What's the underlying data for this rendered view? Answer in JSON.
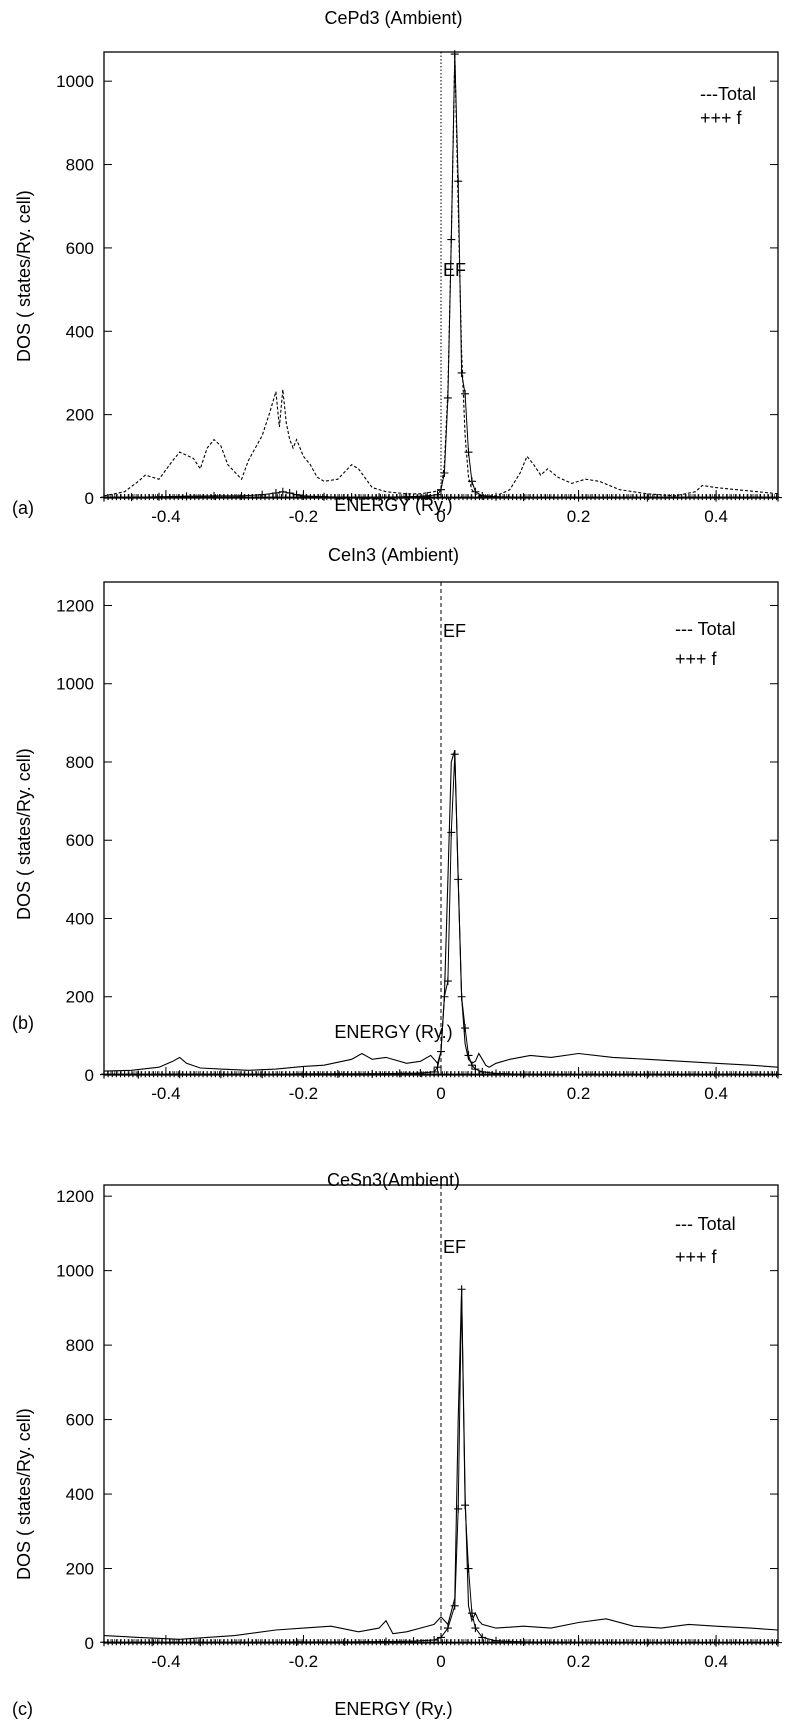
{
  "chart_data": [
    {
      "panel_label": "(a)",
      "type": "line",
      "title": "CePd3 (Ambient)",
      "xlabel": "ENERGY (Ry.)",
      "ylabel": "DOS ( states/Ry. cell)",
      "xlim": [
        -0.49,
        0.49
      ],
      "ylim": [
        0,
        1070
      ],
      "xticks": [
        -0.4,
        -0.2,
        0,
        0.2,
        0.4
      ],
      "xtick_labels": [
        "-0.4",
        "-0.2",
        "0",
        "0.2",
        "0.4"
      ],
      "yticks": [
        0,
        200,
        400,
        600,
        800,
        1000
      ],
      "ef_label": "EF",
      "ef_x": 0.0,
      "legend": [
        {
          "label": "---Total",
          "style": "dashed"
        },
        {
          "label": "+++ f",
          "style": "plus"
        }
      ],
      "series": [
        {
          "name": "Total",
          "style": "dashed",
          "x": [
            -0.49,
            -0.46,
            -0.44,
            -0.43,
            -0.41,
            -0.39,
            -0.38,
            -0.36,
            -0.35,
            -0.34,
            -0.33,
            -0.32,
            -0.31,
            -0.29,
            -0.28,
            -0.26,
            -0.25,
            -0.24,
            -0.235,
            -0.23,
            -0.225,
            -0.22,
            -0.215,
            -0.21,
            -0.2,
            -0.19,
            -0.18,
            -0.17,
            -0.15,
            -0.13,
            -0.12,
            -0.1,
            -0.08,
            -0.05,
            -0.03,
            -0.01,
            0.0,
            0.005,
            0.01,
            0.015,
            0.02,
            0.025,
            0.03,
            0.035,
            0.04,
            0.045,
            0.05,
            0.06,
            0.08,
            0.1,
            0.115,
            0.125,
            0.135,
            0.145,
            0.155,
            0.17,
            0.19,
            0.21,
            0.23,
            0.26,
            0.3,
            0.34,
            0.37,
            0.38,
            0.4,
            0.43,
            0.46,
            0.49
          ],
          "y": [
            5,
            15,
            40,
            55,
            45,
            90,
            110,
            95,
            70,
            120,
            140,
            125,
            80,
            45,
            90,
            150,
            200,
            255,
            170,
            260,
            180,
            140,
            120,
            140,
            100,
            80,
            50,
            40,
            45,
            80,
            70,
            25,
            15,
            10,
            10,
            15,
            20,
            80,
            260,
            620,
            1065,
            700,
            350,
            150,
            50,
            20,
            10,
            5,
            5,
            20,
            60,
            100,
            80,
            55,
            70,
            50,
            35,
            45,
            40,
            20,
            10,
            5,
            15,
            30,
            25,
            20,
            15,
            10
          ]
        },
        {
          "name": "f",
          "style": "plus",
          "x": [
            -0.49,
            -0.45,
            -0.41,
            -0.37,
            -0.33,
            -0.29,
            -0.26,
            -0.24,
            -0.23,
            -0.22,
            -0.21,
            -0.2,
            -0.17,
            -0.13,
            -0.09,
            -0.05,
            -0.02,
            -0.005,
            0.0,
            0.005,
            0.01,
            0.015,
            0.02,
            0.025,
            0.03,
            0.035,
            0.04,
            0.045,
            0.05,
            0.06,
            0.08,
            0.12,
            0.2,
            0.3,
            0.4,
            0.49
          ],
          "y": [
            1,
            2,
            3,
            4,
            5,
            5,
            8,
            12,
            15,
            12,
            8,
            5,
            3,
            2,
            2,
            3,
            5,
            8,
            20,
            60,
            240,
            620,
            1065,
            760,
            300,
            250,
            110,
            40,
            15,
            5,
            3,
            2,
            1,
            1,
            1,
            1
          ]
        }
      ]
    },
    {
      "panel_label": "(b)",
      "type": "line",
      "title": "CeIn3 (Ambient)",
      "xlabel": "ENERGY (Ry.)",
      "ylabel": "DOS ( states/Ry. cell)",
      "xlim": [
        -0.49,
        0.49
      ],
      "ylim": [
        0,
        1260
      ],
      "xticks": [
        -0.4,
        -0.2,
        0,
        0.2,
        0.4
      ],
      "xtick_labels": [
        "-0.4",
        "-0.2",
        "0",
        "0.2",
        "0.4"
      ],
      "yticks": [
        0,
        200,
        400,
        600,
        800,
        1000,
        1200
      ],
      "ef_label": "EF",
      "ef_x": 0.0,
      "legend": [
        {
          "label": "--- Total",
          "style": "solid"
        },
        {
          "label": "+++ f",
          "style": "plus"
        }
      ],
      "series": [
        {
          "name": "Total",
          "style": "solid",
          "x": [
            -0.49,
            -0.45,
            -0.41,
            -0.39,
            -0.38,
            -0.37,
            -0.35,
            -0.32,
            -0.28,
            -0.24,
            -0.2,
            -0.17,
            -0.13,
            -0.115,
            -0.1,
            -0.08,
            -0.05,
            -0.03,
            -0.015,
            -0.005,
            0.0,
            0.005,
            0.01,
            0.015,
            0.02,
            0.025,
            0.03,
            0.035,
            0.04,
            0.045,
            0.05,
            0.055,
            0.06,
            0.065,
            0.07,
            0.08,
            0.1,
            0.13,
            0.16,
            0.2,
            0.25,
            0.3,
            0.35,
            0.4,
            0.45,
            0.49
          ],
          "y": [
            10,
            12,
            20,
            35,
            45,
            30,
            18,
            15,
            12,
            15,
            22,
            25,
            40,
            55,
            40,
            45,
            30,
            35,
            50,
            30,
            60,
            200,
            500,
            800,
            830,
            500,
            200,
            80,
            40,
            30,
            35,
            55,
            40,
            25,
            20,
            30,
            40,
            50,
            45,
            55,
            45,
            40,
            35,
            30,
            25,
            20
          ]
        },
        {
          "name": "f",
          "style": "plus",
          "x": [
            -0.49,
            -0.44,
            -0.38,
            -0.32,
            -0.26,
            -0.2,
            -0.15,
            -0.1,
            -0.06,
            -0.03,
            -0.01,
            -0.005,
            0.0,
            0.005,
            0.01,
            0.015,
            0.02,
            0.025,
            0.03,
            0.035,
            0.04,
            0.045,
            0.05,
            0.06,
            0.08,
            0.12,
            0.2,
            0.3,
            0.4,
            0.49
          ],
          "y": [
            1,
            1,
            2,
            2,
            2,
            3,
            3,
            3,
            4,
            5,
            8,
            20,
            60,
            200,
            240,
            620,
            820,
            500,
            200,
            120,
            50,
            25,
            15,
            8,
            4,
            2,
            1,
            1,
            1,
            1
          ]
        }
      ]
    },
    {
      "panel_label": "(c)",
      "type": "line",
      "title": "CeSn3(Ambient)",
      "xlabel": "ENERGY (Ry.)",
      "ylabel": "DOS ( states/Ry. cell)",
      "xlim": [
        -0.49,
        0.49
      ],
      "ylim": [
        0,
        1230
      ],
      "xticks": [
        -0.4,
        -0.2,
        0,
        0.2,
        0.4
      ],
      "xtick_labels": [
        "-0.4",
        "-0.2",
        "0",
        "0.2",
        "0.4"
      ],
      "yticks": [
        0,
        200,
        400,
        600,
        800,
        1000,
        1200
      ],
      "ef_label": "EF",
      "ef_x": 0.0,
      "legend": [
        {
          "label": "--- Total",
          "style": "solid"
        },
        {
          "label": "+++ f",
          "style": "plus"
        }
      ],
      "series": [
        {
          "name": "Total",
          "style": "solid",
          "x": [
            -0.49,
            -0.44,
            -0.38,
            -0.3,
            -0.24,
            -0.2,
            -0.16,
            -0.12,
            -0.09,
            -0.08,
            -0.07,
            -0.05,
            -0.03,
            -0.01,
            0.0,
            0.01,
            0.02,
            0.025,
            0.03,
            0.035,
            0.04,
            0.045,
            0.05,
            0.055,
            0.06,
            0.08,
            0.12,
            0.16,
            0.2,
            0.24,
            0.28,
            0.32,
            0.36,
            0.4,
            0.45,
            0.49
          ],
          "y": [
            20,
            15,
            10,
            20,
            35,
            40,
            45,
            30,
            40,
            60,
            25,
            30,
            40,
            50,
            70,
            50,
            120,
            600,
            950,
            400,
            100,
            60,
            80,
            60,
            50,
            40,
            45,
            40,
            55,
            65,
            45,
            40,
            50,
            45,
            40,
            35
          ]
        },
        {
          "name": "f",
          "style": "plus",
          "x": [
            -0.49,
            -0.42,
            -0.35,
            -0.28,
            -0.21,
            -0.14,
            -0.08,
            -0.04,
            -0.01,
            0.0,
            0.01,
            0.02,
            0.025,
            0.03,
            0.035,
            0.04,
            0.045,
            0.05,
            0.06,
            0.08,
            0.12,
            0.2,
            0.3,
            0.4,
            0.49
          ],
          "y": [
            2,
            2,
            2,
            2,
            3,
            3,
            4,
            5,
            8,
            15,
            40,
            100,
            360,
            950,
            370,
            200,
            80,
            40,
            15,
            6,
            3,
            2,
            1,
            1,
            1
          ]
        }
      ]
    }
  ]
}
